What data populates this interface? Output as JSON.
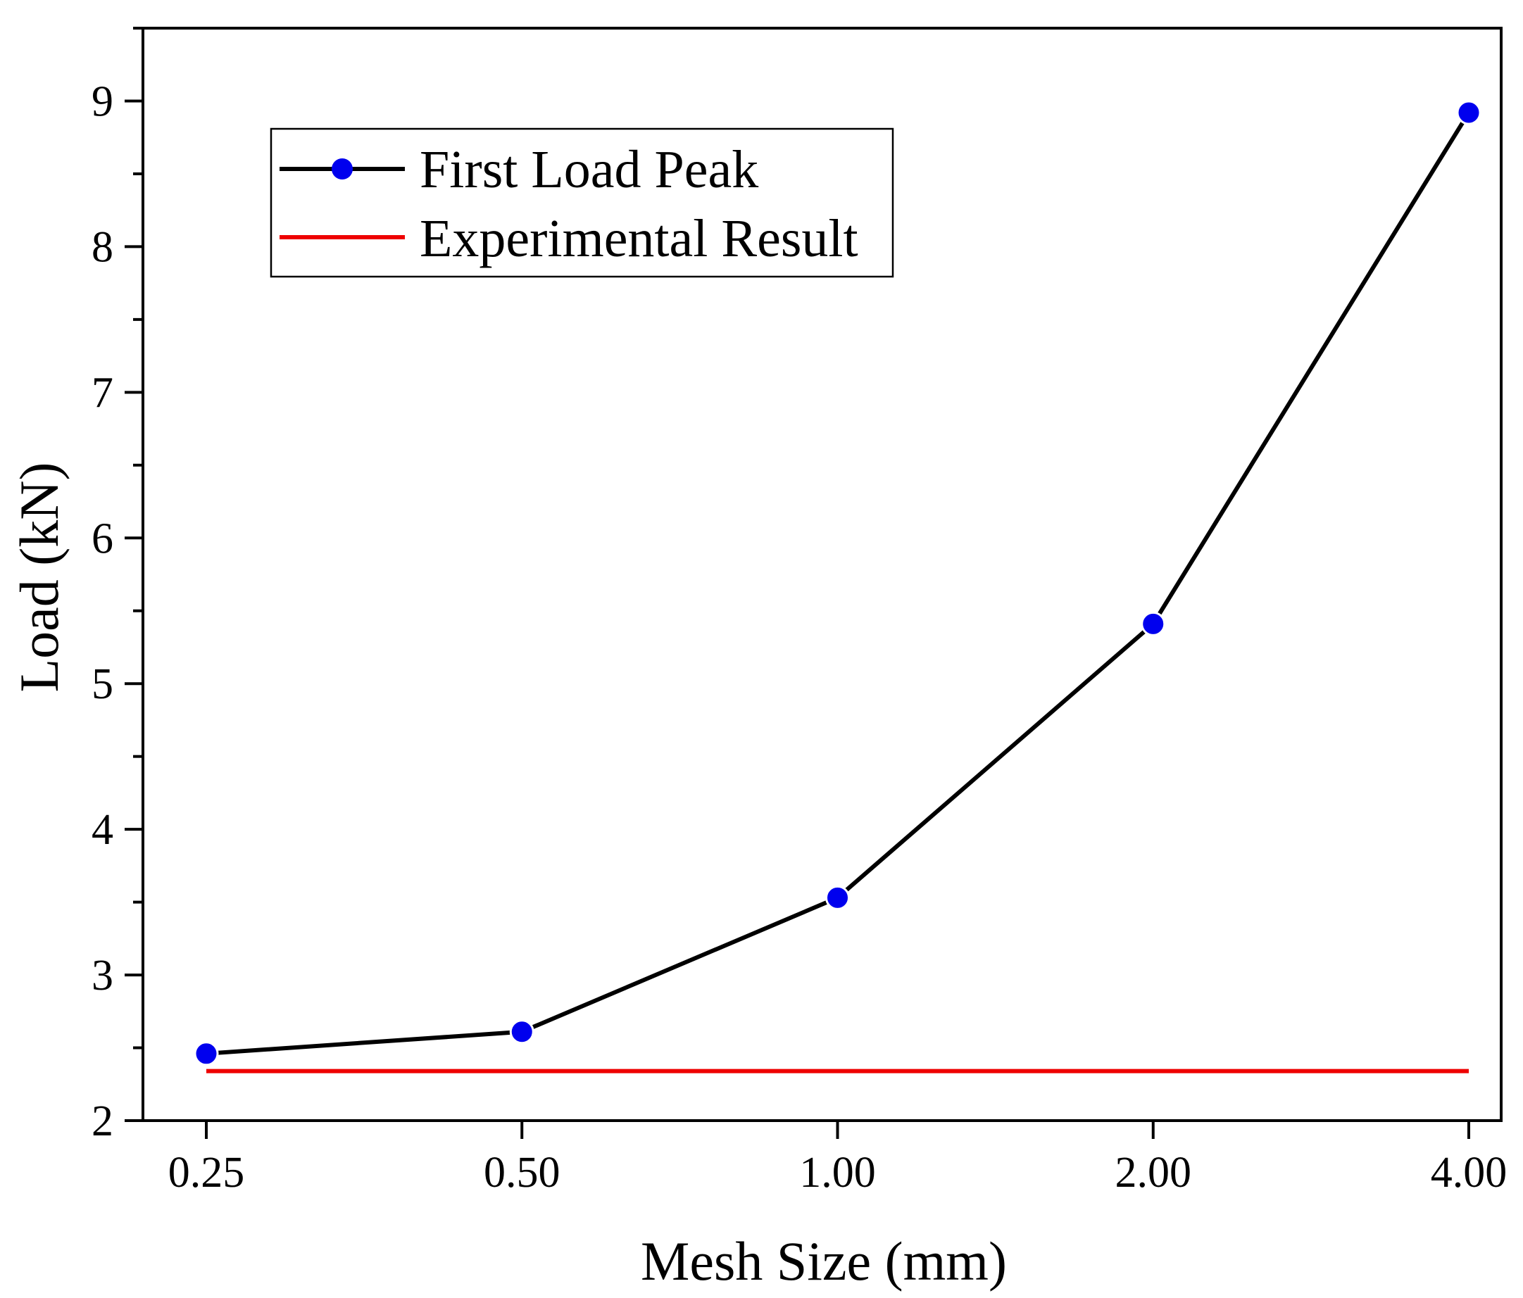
{
  "chart_data": {
    "type": "line",
    "title": "",
    "xlabel": "Mesh Size (mm)",
    "ylabel": "Load (kN)",
    "categories": [
      "0.25",
      "0.50",
      "1.00",
      "2.00",
      "4.00"
    ],
    "ylim": [
      2,
      9.5
    ],
    "yticks": [
      "2",
      "3",
      "4",
      "5",
      "6",
      "7",
      "8",
      "9"
    ],
    "series": [
      {
        "name": "First Load Peak",
        "values": [
          2.46,
          2.61,
          3.53,
          5.41,
          8.92
        ],
        "line_color": "#000000",
        "marker_color": "#0000ee"
      },
      {
        "name": "Experimental Result",
        "values": [
          2.34,
          2.34,
          2.34,
          2.34,
          2.34
        ],
        "line_color": "#ee0000"
      }
    ],
    "legend": "top-left"
  }
}
